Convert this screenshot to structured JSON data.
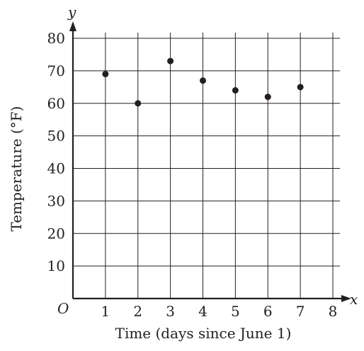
{
  "chart_data": {
    "type": "scatter",
    "xlabel": "Time (days since June 1)",
    "ylabel": "Temperature (°F)",
    "x_axis_symbol": "x",
    "y_axis_symbol": "y",
    "origin_label": "O",
    "xlim": [
      0,
      8
    ],
    "ylim": [
      0,
      80
    ],
    "x_ticks": [
      "1",
      "2",
      "3",
      "4",
      "5",
      "6",
      "7",
      "8"
    ],
    "y_ticks": [
      "10",
      "20",
      "30",
      "40",
      "50",
      "60",
      "70",
      "80"
    ],
    "grid": true,
    "points": [
      {
        "x": 1,
        "y": 69
      },
      {
        "x": 2,
        "y": 60
      },
      {
        "x": 3,
        "y": 73
      },
      {
        "x": 4,
        "y": 67
      },
      {
        "x": 5,
        "y": 64
      },
      {
        "x": 6,
        "y": 62
      },
      {
        "x": 7,
        "y": 65
      }
    ],
    "colors": {
      "ink": "#231f20",
      "grid": "#231f20"
    }
  }
}
